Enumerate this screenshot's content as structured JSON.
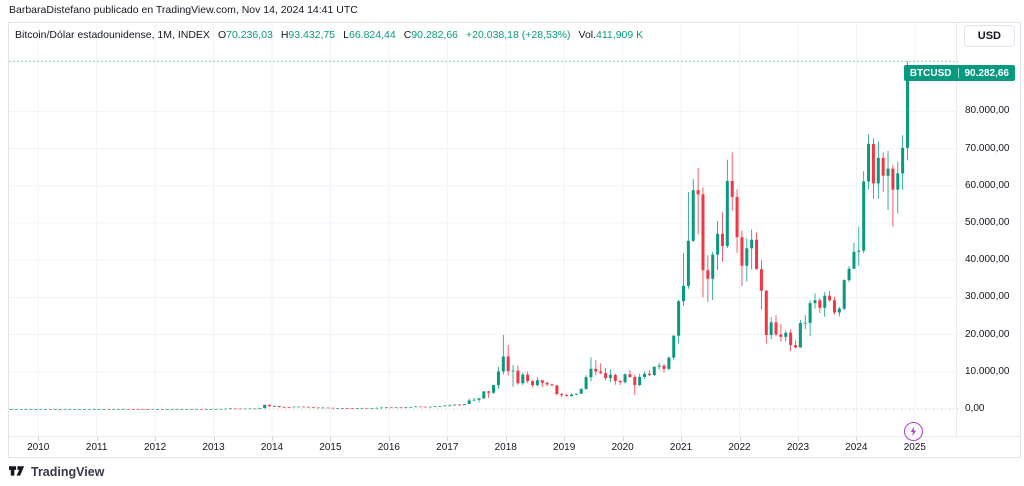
{
  "header": {
    "attribution": "BarbaraDistefano publicado en TradingView.com, Nov 14, 2024 14:41 UTC"
  },
  "title_bar": {
    "symbol_title": "Bitcoin/Dólar estadounidense, 1M, INDEX",
    "o_label": "O",
    "o": "70.236,03",
    "h_label": "H",
    "h": "93.432,75",
    "l_label": "L",
    "l": "66.824,44",
    "c_label": "C",
    "c": "90.282,66",
    "change": "+20.038,18 (+28,53%)",
    "vol_label": "Vol.",
    "vol": "411,909 K"
  },
  "price_axis": {
    "currency_button": "USD",
    "price_tag": {
      "symbol": "BTCUSD",
      "price": "90.282,66"
    },
    "labels": [
      {
        "text": "80.000,00",
        "value": 80000
      },
      {
        "text": "70.000,00",
        "value": 70000
      },
      {
        "text": "60.000,00",
        "value": 60000
      },
      {
        "text": "50.000,00",
        "value": 50000
      },
      {
        "text": "40.000,00",
        "value": 40000
      },
      {
        "text": "30.000,00",
        "value": 30000
      },
      {
        "text": "20.000,00",
        "value": 20000
      },
      {
        "text": "10.000,00",
        "value": 10000
      },
      {
        "text": "0,00",
        "value": 0
      }
    ]
  },
  "time_axis": {
    "years": [
      "2010",
      "2011",
      "2012",
      "2013",
      "2014",
      "2015",
      "2016",
      "2017",
      "2018",
      "2019",
      "2020",
      "2021",
      "2022",
      "2023",
      "2024",
      "2025"
    ]
  },
  "branding": {
    "logo_text": "TradingView"
  },
  "colors": {
    "up": "#089981",
    "down": "#F23645",
    "grid": "#f0f3fa",
    "idea_purple": "#ab47bc"
  },
  "chart_data": {
    "type": "candlestick",
    "title": "Bitcoin/Dólar estadounidense, 1M, INDEX",
    "symbol": "BTCUSD",
    "interval": "1M",
    "ylabel": "USD",
    "ylim": [
      -7800,
      103800
    ],
    "y_ticks": [
      0,
      10000,
      20000,
      30000,
      40000,
      50000,
      60000,
      70000,
      80000
    ],
    "x_ticks": [
      "2010",
      "2011",
      "2012",
      "2013",
      "2014",
      "2015",
      "2016",
      "2017",
      "2018",
      "2019",
      "2020",
      "2021",
      "2022",
      "2023",
      "2024",
      "2025"
    ],
    "grid": true,
    "legend_position": "none",
    "last_bar": {
      "open": 70236.03,
      "high": 93432.75,
      "low": 66824.44,
      "close": 90282.66,
      "change": 20038.18,
      "change_pct": 28.53,
      "volume": "411,909 K"
    },
    "months": [
      [
        "2009-07",
        0.001,
        0.001,
        0.001,
        0.001
      ],
      [
        "2009-08",
        0.001,
        0.001,
        0.001,
        0.001
      ],
      [
        "2009-09",
        0.001,
        0.001,
        0.001,
        0.001
      ],
      [
        "2009-10",
        0.001,
        0.001,
        0.001,
        0.001
      ],
      [
        "2009-11",
        0.001,
        0.001,
        0.001,
        0.001
      ],
      [
        "2009-12",
        0.001,
        0.001,
        0.001,
        0.001
      ],
      [
        "2010-01",
        0.001,
        0.003,
        0.001,
        0.003
      ],
      [
        "2010-02",
        0.003,
        0.006,
        0.002,
        0.006
      ],
      [
        "2010-03",
        0.006,
        0.006,
        0.003,
        0.003
      ],
      [
        "2010-04",
        0.003,
        0.004,
        0.003,
        0.003
      ],
      [
        "2010-05",
        0.003,
        0.004,
        0.003,
        0.004
      ],
      [
        "2010-06",
        0.004,
        0.08,
        0.004,
        0.06
      ],
      [
        "2010-07",
        0.06,
        0.09,
        0.05,
        0.06
      ],
      [
        "2010-08",
        0.06,
        0.08,
        0.05,
        0.06
      ],
      [
        "2010-09",
        0.06,
        0.07,
        0.06,
        0.06
      ],
      [
        "2010-10",
        0.06,
        0.2,
        0.06,
        0.19
      ],
      [
        "2010-11",
        0.19,
        0.5,
        0.18,
        0.21
      ],
      [
        "2010-12",
        0.21,
        0.3,
        0.17,
        0.3
      ],
      [
        "2011-01",
        0.3,
        0.55,
        0.29,
        0.52
      ],
      [
        "2011-02",
        0.52,
        1.1,
        0.5,
        0.86
      ],
      [
        "2011-03",
        0.86,
        0.95,
        0.7,
        0.79
      ],
      [
        "2011-04",
        0.79,
        3.05,
        0.78,
        2.9
      ],
      [
        "2011-05",
        2.9,
        8.9,
        2.85,
        8.7
      ],
      [
        "2011-06",
        8.7,
        31.9,
        8.6,
        16
      ],
      [
        "2011-07",
        16,
        17.5,
        12.5,
        13.5
      ],
      [
        "2011-08",
        13.5,
        13.6,
        7.6,
        8.2
      ],
      [
        "2011-09",
        8.2,
        8.9,
        4.8,
        5.1
      ],
      [
        "2011-10",
        5.1,
        5.2,
        2.3,
        3.25
      ],
      [
        "2011-11",
        3.25,
        3.4,
        1.9,
        3
      ],
      [
        "2011-12",
        3,
        4.6,
        2.9,
        4.3
      ],
      [
        "2012-01",
        4.3,
        7.2,
        4.2,
        5.5
      ],
      [
        "2012-02",
        5.5,
        5.7,
        4.3,
        4.9
      ],
      [
        "2012-03",
        4.9,
        5.3,
        4.5,
        4.9
      ],
      [
        "2012-04",
        4.9,
        5.4,
        4.6,
        5
      ],
      [
        "2012-05",
        5,
        5.3,
        4.9,
        5.2
      ],
      [
        "2012-06",
        5.2,
        6.8,
        5.1,
        6.7
      ],
      [
        "2012-07",
        6.7,
        9.5,
        6.4,
        9.4
      ],
      [
        "2012-08",
        9.4,
        13.5,
        7.5,
        10.2
      ],
      [
        "2012-09",
        10.2,
        12.5,
        9.8,
        12.4
      ],
      [
        "2012-10",
        12.4,
        12.8,
        10.6,
        11.2
      ],
      [
        "2012-11",
        11.2,
        12.7,
        10.5,
        12.6
      ],
      [
        "2012-12",
        12.6,
        13.9,
        12.3,
        13.5
      ],
      [
        "2013-01",
        13.5,
        21.2,
        13,
        20.4
      ],
      [
        "2013-02",
        20.4,
        34.5,
        19.9,
        33.4
      ],
      [
        "2013-03",
        33.4,
        94,
        33,
        93
      ],
      [
        "2013-04",
        93,
        266,
        79,
        139
      ],
      [
        "2013-05",
        139,
        140,
        97,
        128
      ],
      [
        "2013-06",
        128,
        130,
        88,
        97
      ],
      [
        "2013-07",
        97,
        112,
        65,
        106
      ],
      [
        "2013-08",
        106,
        147,
        92,
        141
      ],
      [
        "2013-09",
        141,
        146,
        119,
        141
      ],
      [
        "2013-10",
        141,
        232,
        123,
        204
      ],
      [
        "2013-11",
        204,
        1163,
        198,
        1120
      ],
      [
        "2013-12",
        1120,
        1156,
        650,
        754
      ],
      [
        "2014-01",
        754,
        1000,
        720,
        806
      ],
      [
        "2014-02",
        806,
        830,
        400,
        550
      ],
      [
        "2014-03",
        550,
        710,
        420,
        458
      ],
      [
        "2014-04",
        458,
        550,
        340,
        446
      ],
      [
        "2014-05",
        446,
        630,
        420,
        627
      ],
      [
        "2014-06",
        627,
        680,
        540,
        641
      ],
      [
        "2014-07",
        641,
        660,
        560,
        583
      ],
      [
        "2014-08",
        583,
        600,
        440,
        477
      ],
      [
        "2014-09",
        477,
        490,
        370,
        387
      ],
      [
        "2014-10",
        387,
        415,
        275,
        338
      ],
      [
        "2014-11",
        338,
        460,
        320,
        378
      ],
      [
        "2014-12",
        378,
        385,
        285,
        320
      ],
      [
        "2015-01",
        320,
        322,
        152,
        217
      ],
      [
        "2015-02",
        217,
        265,
        210,
        254
      ],
      [
        "2015-03",
        254,
        300,
        230,
        244
      ],
      [
        "2015-04",
        244,
        262,
        210,
        236
      ],
      [
        "2015-05",
        236,
        250,
        225,
        230
      ],
      [
        "2015-06",
        230,
        268,
        217,
        263
      ],
      [
        "2015-07",
        263,
        318,
        245,
        284
      ],
      [
        "2015-08",
        284,
        288,
        198,
        230
      ],
      [
        "2015-09",
        230,
        250,
        223,
        236
      ],
      [
        "2015-10",
        236,
        334,
        235,
        314
      ],
      [
        "2015-11",
        314,
        504,
        300,
        377
      ],
      [
        "2015-12",
        377,
        470,
        340,
        430
      ],
      [
        "2016-01",
        430,
        435,
        350,
        369
      ],
      [
        "2016-02",
        369,
        448,
        365,
        437
      ],
      [
        "2016-03",
        437,
        445,
        383,
        416
      ],
      [
        "2016-04",
        416,
        470,
        410,
        448
      ],
      [
        "2016-05",
        448,
        550,
        435,
        531
      ],
      [
        "2016-06",
        531,
        780,
        510,
        673
      ],
      [
        "2016-07",
        673,
        707,
        590,
        624
      ],
      [
        "2016-08",
        624,
        630,
        465,
        575
      ],
      [
        "2016-09",
        575,
        615,
        560,
        610
      ],
      [
        "2016-10",
        610,
        715,
        595,
        700
      ],
      [
        "2016-11",
        700,
        755,
        670,
        745
      ],
      [
        "2016-12",
        745,
        980,
        740,
        964
      ],
      [
        "2017-01",
        964,
        1190,
        750,
        970
      ],
      [
        "2017-02",
        970,
        1230,
        910,
        1180
      ],
      [
        "2017-03",
        1180,
        1290,
        890,
        1080
      ],
      [
        "2017-04",
        1080,
        1360,
        1060,
        1350
      ],
      [
        "2017-05",
        1350,
        2760,
        1320,
        2300
      ],
      [
        "2017-06",
        2300,
        2980,
        2130,
        2480
      ],
      [
        "2017-07",
        2480,
        2920,
        1830,
        2875
      ],
      [
        "2017-08",
        2875,
        4750,
        2650,
        4735
      ],
      [
        "2017-09",
        4735,
        4940,
        2970,
        4360
      ],
      [
        "2017-10",
        4360,
        6470,
        4110,
        6450
      ],
      [
        "2017-11",
        6450,
        11300,
        5440,
        10100
      ],
      [
        "2017-12",
        10100,
        19900,
        9250,
        14100
      ],
      [
        "2018-01",
        14100,
        17200,
        9000,
        10200
      ],
      [
        "2018-02",
        10200,
        11790,
        6000,
        10300
      ],
      [
        "2018-03",
        10300,
        11700,
        6600,
        6930
      ],
      [
        "2018-04",
        6930,
        9760,
        6430,
        9240
      ],
      [
        "2018-05",
        9240,
        9990,
        7040,
        7500
      ],
      [
        "2018-06",
        7500,
        7750,
        5780,
        6400
      ],
      [
        "2018-07",
        6400,
        8500,
        6070,
        7730
      ],
      [
        "2018-08",
        7730,
        7770,
        5880,
        7030
      ],
      [
        "2018-09",
        7030,
        7410,
        6120,
        6600
      ],
      [
        "2018-10",
        6600,
        6830,
        6200,
        6300
      ],
      [
        "2018-11",
        6300,
        6540,
        3650,
        4020
      ],
      [
        "2018-12",
        4020,
        4310,
        3160,
        3740
      ],
      [
        "2019-01",
        3740,
        4110,
        3350,
        3460
      ],
      [
        "2019-02",
        3460,
        4200,
        3350,
        3850
      ],
      [
        "2019-03",
        3850,
        4140,
        3670,
        4100
      ],
      [
        "2019-04",
        4100,
        5650,
        4050,
        5350
      ],
      [
        "2019-05",
        5350,
        9100,
        5330,
        8560
      ],
      [
        "2019-06",
        8560,
        13880,
        7430,
        10800
      ],
      [
        "2019-07",
        10800,
        13200,
        9080,
        10080
      ],
      [
        "2019-08",
        10080,
        12320,
        9360,
        9630
      ],
      [
        "2019-09",
        9630,
        10950,
        7700,
        8310
      ],
      [
        "2019-10",
        8310,
        10540,
        7290,
        9150
      ],
      [
        "2019-11",
        9150,
        9520,
        6520,
        7550
      ],
      [
        "2019-12",
        7550,
        7750,
        6430,
        7190
      ],
      [
        "2020-01",
        7190,
        9570,
        6850,
        9350
      ],
      [
        "2020-02",
        9350,
        10500,
        8400,
        8600
      ],
      [
        "2020-03",
        8600,
        9170,
        3850,
        6440
      ],
      [
        "2020-04",
        6440,
        9460,
        6150,
        8620
      ],
      [
        "2020-05",
        8620,
        10070,
        8100,
        9450
      ],
      [
        "2020-06",
        9450,
        10380,
        8830,
        9140
      ],
      [
        "2020-07",
        9140,
        11450,
        8900,
        11350
      ],
      [
        "2020-08",
        11350,
        12480,
        10550,
        11650
      ],
      [
        "2020-09",
        11650,
        12050,
        9800,
        10780
      ],
      [
        "2020-10",
        10780,
        14100,
        10380,
        13800
      ],
      [
        "2020-11",
        13800,
        19860,
        13200,
        19700
      ],
      [
        "2020-12",
        19700,
        29300,
        17570,
        29000
      ],
      [
        "2021-01",
        29000,
        41950,
        27700,
        33100
      ],
      [
        "2021-02",
        33100,
        58350,
        32300,
        45200
      ],
      [
        "2021-03",
        45200,
        61800,
        44950,
        58800
      ],
      [
        "2021-04",
        58800,
        64850,
        46930,
        57700
      ],
      [
        "2021-05",
        57700,
        59500,
        30000,
        37300
      ],
      [
        "2021-06",
        37300,
        41300,
        28800,
        35000
      ],
      [
        "2021-07",
        35000,
        42300,
        29300,
        41500
      ],
      [
        "2021-08",
        41500,
        50500,
        37330,
        47100
      ],
      [
        "2021-09",
        47100,
        52920,
        39600,
        43800
      ],
      [
        "2021-10",
        43800,
        67000,
        43280,
        61300
      ],
      [
        "2021-11",
        61300,
        69000,
        53260,
        57000
      ],
      [
        "2021-12",
        57000,
        59050,
        42000,
        46200
      ],
      [
        "2022-01",
        46200,
        47990,
        32950,
        38500
      ],
      [
        "2022-02",
        38500,
        45820,
        34300,
        43200
      ],
      [
        "2022-03",
        43200,
        48240,
        37550,
        45500
      ],
      [
        "2022-04",
        45500,
        47450,
        37580,
        37600
      ],
      [
        "2022-05",
        37600,
        40000,
        26700,
        31800
      ],
      [
        "2022-06",
        31800,
        31970,
        17600,
        19900
      ],
      [
        "2022-07",
        19900,
        24670,
        18800,
        23300
      ],
      [
        "2022-08",
        23300,
        25200,
        19520,
        20050
      ],
      [
        "2022-09",
        20050,
        22800,
        18100,
        19400
      ],
      [
        "2022-10",
        19400,
        21080,
        18150,
        20500
      ],
      [
        "2022-11",
        20500,
        21480,
        15500,
        17150
      ],
      [
        "2022-12",
        17150,
        18390,
        16250,
        16550
      ],
      [
        "2023-01",
        16550,
        23960,
        16490,
        23100
      ],
      [
        "2023-02",
        23100,
        25250,
        21400,
        23150
      ],
      [
        "2023-03",
        23150,
        29180,
        19550,
        28450
      ],
      [
        "2023-04",
        28450,
        31050,
        26940,
        29250
      ],
      [
        "2023-05",
        29250,
        29820,
        25800,
        27200
      ],
      [
        "2023-06",
        27200,
        31400,
        24800,
        30450
      ],
      [
        "2023-07",
        30450,
        31800,
        28860,
        29230
      ],
      [
        "2023-08",
        29230,
        30180,
        25350,
        25940
      ],
      [
        "2023-09",
        25940,
        27480,
        24900,
        26960
      ],
      [
        "2023-10",
        26960,
        34870,
        26540,
        34650
      ],
      [
        "2023-11",
        34650,
        38420,
        34100,
        37700
      ],
      [
        "2023-12",
        37700,
        44700,
        37620,
        42250
      ],
      [
        "2024-01",
        42250,
        48970,
        38500,
        42550
      ],
      [
        "2024-02",
        42550,
        63930,
        41880,
        61150
      ],
      [
        "2024-03",
        61150,
        73780,
        59100,
        71280
      ],
      [
        "2024-04",
        71280,
        72800,
        56500,
        60640
      ],
      [
        "2024-05",
        60640,
        71950,
        56550,
        67500
      ],
      [
        "2024-06",
        67500,
        69000,
        58400,
        62700
      ],
      [
        "2024-07",
        62700,
        69400,
        53500,
        64600
      ],
      [
        "2024-08",
        64600,
        65600,
        49050,
        58970
      ],
      [
        "2024-09",
        58970,
        66500,
        52550,
        63330
      ],
      [
        "2024-10",
        63330,
        73600,
        58900,
        70215
      ],
      [
        "2024-11",
        70236.03,
        93432.75,
        66824.44,
        90282.66
      ]
    ]
  }
}
